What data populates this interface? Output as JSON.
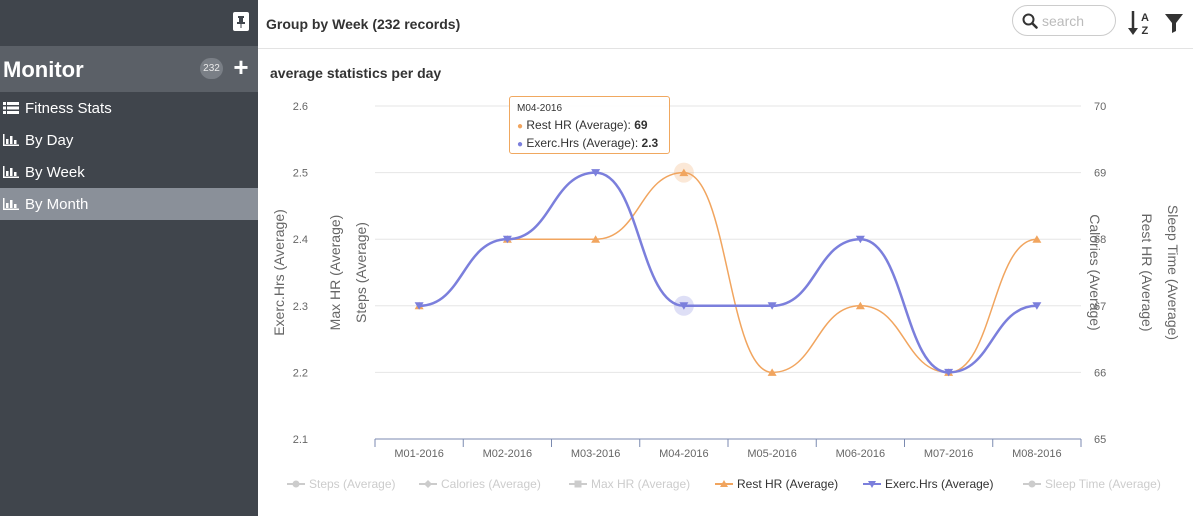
{
  "sidebar": {
    "title": "Monitor",
    "count": "232",
    "items": [
      {
        "label": "Fitness Stats",
        "icon": "list-icon"
      },
      {
        "label": "By Day",
        "icon": "bar-chart-icon"
      },
      {
        "label": "By Week",
        "icon": "bar-chart-icon"
      },
      {
        "label": "By Month",
        "icon": "bar-chart-icon",
        "active": true
      }
    ]
  },
  "header": {
    "title": "Group by Week (232 records)",
    "search_placeholder": "search"
  },
  "chart_title": "average statistics per day",
  "tooltip": {
    "title": "M04-2016",
    "rows": [
      {
        "label": "Rest HR (Average): ",
        "value": "69",
        "color": "#f1a55f"
      },
      {
        "label": "Exerc.Hrs (Average): ",
        "value": "2.3",
        "color": "#7b7fdc"
      }
    ]
  },
  "legend": [
    {
      "label": "Steps (Average)",
      "state": "off",
      "marker": "circle"
    },
    {
      "label": "Calories (Average)",
      "state": "off",
      "marker": "diamond"
    },
    {
      "label": "Max HR (Average)",
      "state": "off",
      "marker": "square"
    },
    {
      "label": "Rest HR (Average)",
      "state": "on",
      "marker": "triangle",
      "color": "#f1a55f"
    },
    {
      "label": "Exerc.Hrs (Average)",
      "state": "on",
      "marker": "triangle-down",
      "color": "#7b7fdc"
    },
    {
      "label": "Sleep Time (Average)",
      "state": "off",
      "marker": "circle"
    }
  ],
  "chart_data": {
    "type": "line",
    "categories": [
      "M01-2016",
      "M02-2016",
      "M03-2016",
      "M04-2016",
      "M05-2016",
      "M06-2016",
      "M07-2016",
      "M08-2016"
    ],
    "left_axis": {
      "ticks": [
        "2.1",
        "2.2",
        "2.3",
        "2.4",
        "2.5",
        "2.6"
      ],
      "range": [
        2.1,
        2.6
      ],
      "labels": [
        "Exerc.Hrs (Average)",
        "Max HR (Average)",
        "Steps (Average)"
      ]
    },
    "right_axis": {
      "ticks": [
        "65",
        "66",
        "67",
        "68",
        "69",
        "70"
      ],
      "range": [
        65,
        70
      ],
      "labels": [
        "Calories (Average)",
        "Rest HR (Average)",
        "Sleep Time (Average)"
      ]
    },
    "series": [
      {
        "name": "Rest HR (Average)",
        "axis": "right",
        "color": "#f1a55f",
        "values": [
          67,
          68,
          68,
          69,
          66,
          67,
          66,
          68
        ]
      },
      {
        "name": "Exerc.Hrs (Average)",
        "axis": "left",
        "color": "#7b7fdc",
        "values": [
          2.3,
          2.4,
          2.5,
          2.3,
          2.3,
          2.4,
          2.2,
          2.3
        ]
      }
    ],
    "highlight_category": "M04-2016",
    "grid": true,
    "legend_position": "bottom"
  }
}
